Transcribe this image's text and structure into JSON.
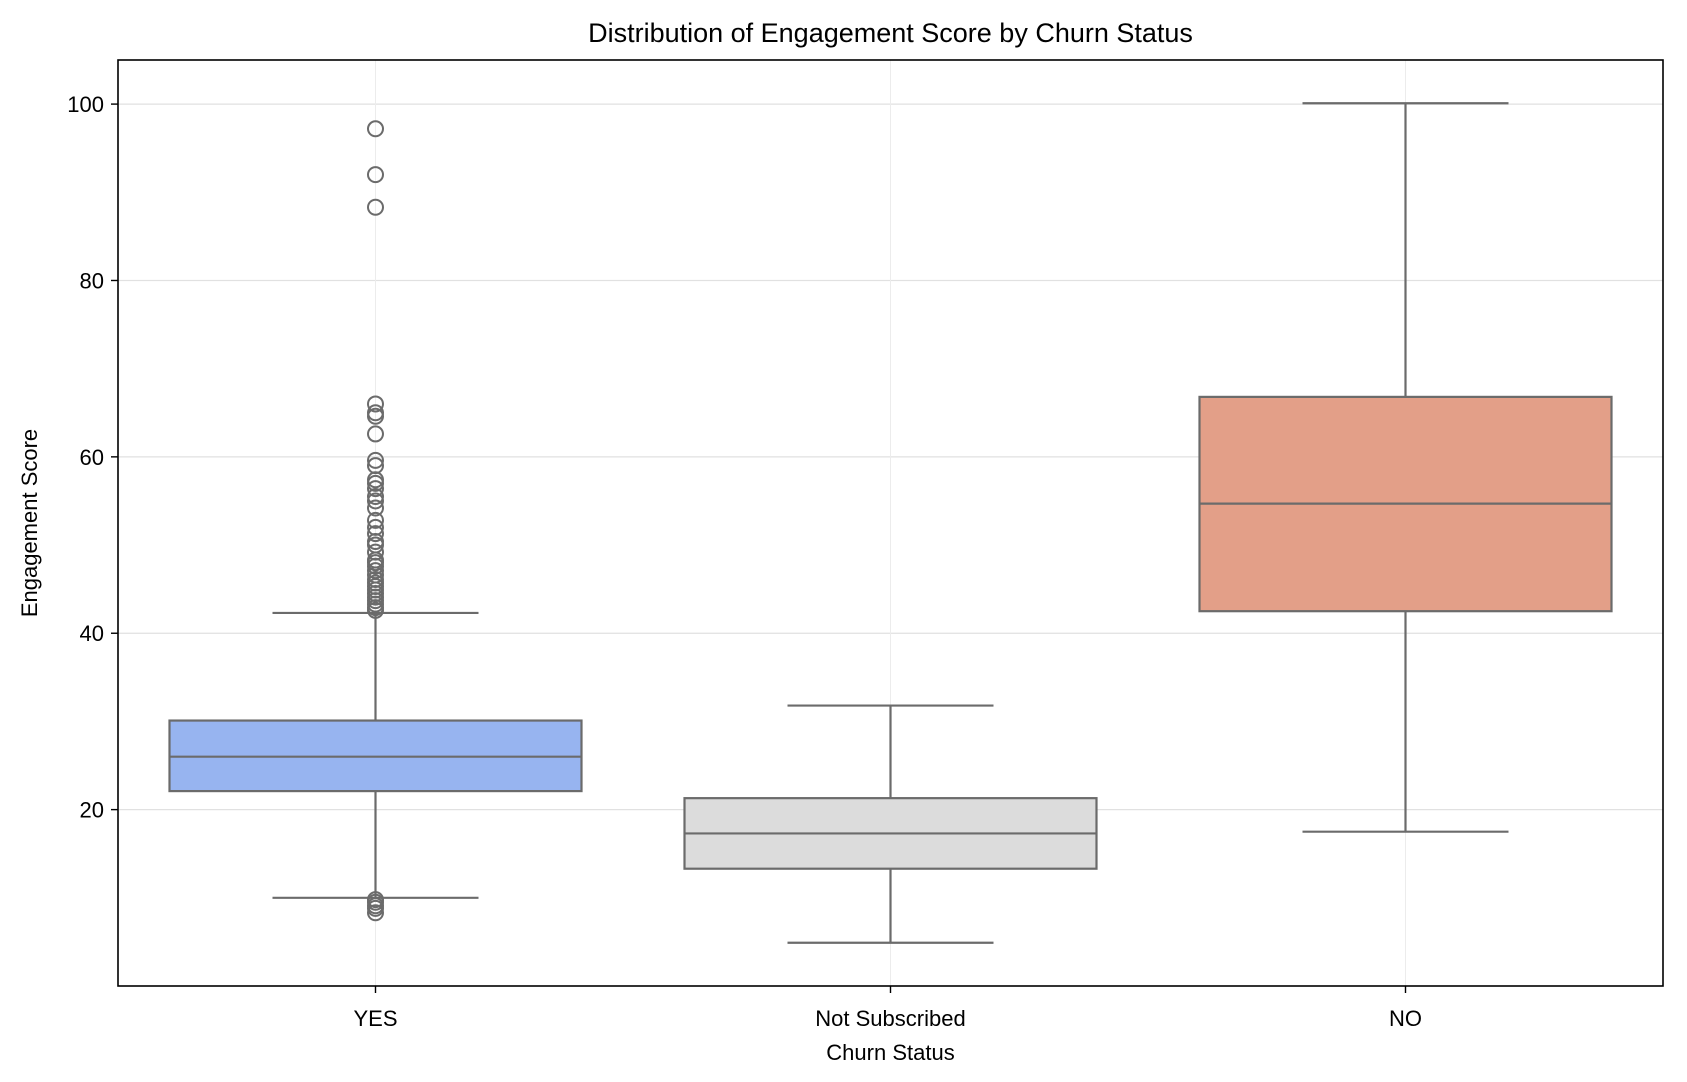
{
  "chart_data": {
    "type": "box",
    "title": "Distribution of Engagement Score by Churn Status",
    "xlabel": "Churn Status",
    "ylabel": "Engagement Score",
    "ylim": [
      0,
      105
    ],
    "yticks": [
      20,
      40,
      60,
      80,
      100
    ],
    "grid": true,
    "categories": [
      "YES",
      "Not Subscribed",
      "NO"
    ],
    "boxes": [
      {
        "category": "YES",
        "color": "#97b4f0",
        "whisker_low": 10.0,
        "q1": 22.1,
        "median": 26.0,
        "q3": 30.1,
        "whisker_high": 42.3,
        "outliers": [
          97.2,
          92.0,
          88.3,
          66.0,
          65.0,
          64.6,
          62.6,
          59.6,
          59.0,
          57.4,
          57.0,
          56.4,
          55.5,
          55.0,
          54.2,
          52.8,
          52.0,
          51.3,
          50.4,
          50.0,
          49.2,
          48.3,
          48.0,
          47.6,
          47.1,
          46.6,
          46.1,
          45.7,
          45.3,
          44.9,
          44.5,
          44.1,
          43.7,
          43.3,
          42.9,
          42.6,
          9.8,
          9.5,
          9.1,
          8.8,
          8.3
        ]
      },
      {
        "category": "Not Subscribed",
        "color": "#dcdcdc",
        "whisker_low": 4.9,
        "q1": 13.3,
        "median": 17.3,
        "q3": 21.3,
        "whisker_high": 31.8,
        "outliers": []
      },
      {
        "category": "NO",
        "color": "#e39f88",
        "whisker_low": 17.5,
        "q1": 42.5,
        "median": 54.7,
        "q3": 66.8,
        "whisker_high": 100.1,
        "outliers": []
      }
    ],
    "colors": {
      "line": "#6b6b6b",
      "grid": "#e1e1e1",
      "axis": "#000000"
    }
  }
}
